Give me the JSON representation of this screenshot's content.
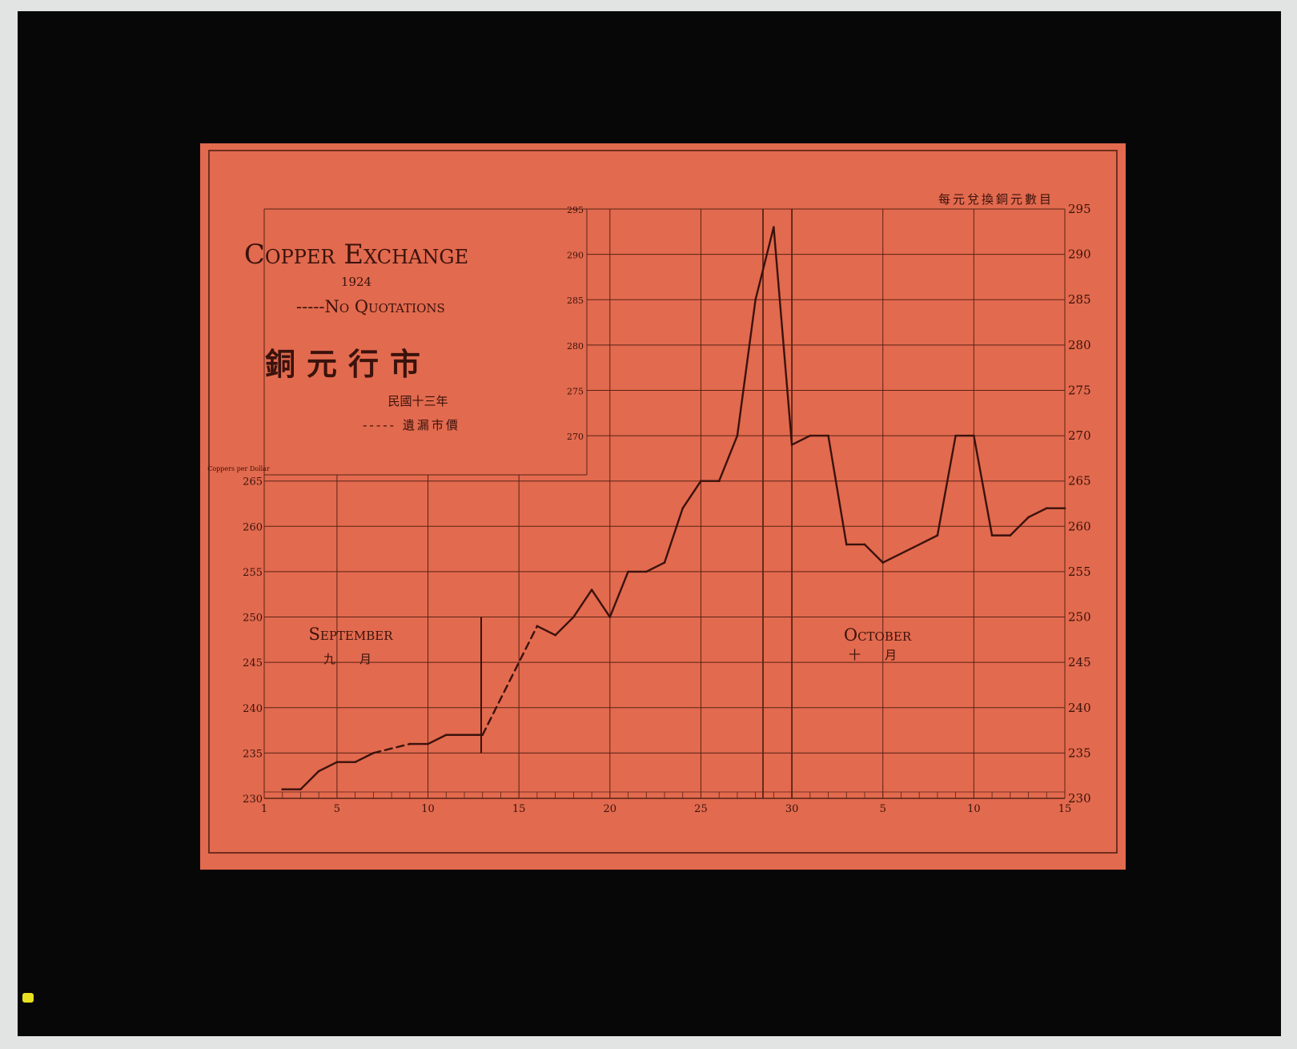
{
  "chart_data": {
    "type": "line",
    "title": "Copper Exchange",
    "subtitle": "1924",
    "title_zh": "銅元行市",
    "subtitle_zh": "民國十三年",
    "legend": {
      "dashed_label": "-----No Quotations",
      "dashed_label_zh": "----- 遺漏市價",
      "placement": "top-left"
    },
    "ylabel": "Coppers per Dollar",
    "ylabel_zh": "每元兌換銅元數目",
    "ylim": [
      230,
      295
    ],
    "y_ticks": [
      230,
      235,
      240,
      245,
      250,
      255,
      260,
      265,
      270,
      275,
      280,
      285,
      290,
      295
    ],
    "x_ticks": [
      {
        "day": 1,
        "label": "1"
      },
      {
        "day": 5,
        "label": "5"
      },
      {
        "day": 10,
        "label": "10"
      },
      {
        "day": 15,
        "label": "15"
      },
      {
        "day": 20,
        "label": "20"
      },
      {
        "day": 25,
        "label": "25"
      },
      {
        "day": 30,
        "label": "30"
      },
      {
        "day": 35,
        "label": "5"
      },
      {
        "day": 40,
        "label": "10"
      },
      {
        "day": 45,
        "label": "15"
      }
    ],
    "month_labels": [
      {
        "name": "September",
        "name_zh": "九　　月"
      },
      {
        "name": "October",
        "name_zh": "十　　月"
      }
    ],
    "grid": true,
    "series": [
      {
        "points": [
          {
            "x": "Sep 2",
            "y": 231,
            "day": 2
          },
          {
            "x": "Sep 3",
            "y": 231,
            "day": 3
          },
          {
            "x": "Sep 4",
            "y": 233,
            "day": 4
          },
          {
            "x": "Sep 5",
            "y": 234,
            "day": 5
          },
          {
            "x": "Sep 6",
            "y": 234,
            "day": 6
          },
          {
            "x": "Sep 7",
            "y": 235,
            "day": 7
          },
          {
            "x": "Sep 9",
            "y": 236,
            "day": 9,
            "dashed_from_previous": true
          },
          {
            "x": "Sep 10",
            "y": 236,
            "day": 10
          },
          {
            "x": "Sep 11",
            "y": 237,
            "day": 11
          },
          {
            "x": "Sep 13",
            "y": 237,
            "day": 13
          },
          {
            "x": "Sep 16",
            "y": 249,
            "day": 16,
            "dashed_from_previous": true
          },
          {
            "x": "Sep 17",
            "y": 248,
            "day": 17
          },
          {
            "x": "Sep 18",
            "y": 250,
            "day": 18
          },
          {
            "x": "Sep 19",
            "y": 253,
            "day": 19
          },
          {
            "x": "Sep 20",
            "y": 250,
            "day": 20
          },
          {
            "x": "Sep 21",
            "y": 255,
            "day": 21
          },
          {
            "x": "Sep 22",
            "y": 255,
            "day": 22
          },
          {
            "x": "Sep 23",
            "y": 256,
            "day": 23
          },
          {
            "x": "Sep 24",
            "y": 262,
            "day": 24
          },
          {
            "x": "Sep 25",
            "y": 265,
            "day": 25
          },
          {
            "x": "Sep 26",
            "y": 265,
            "day": 26
          },
          {
            "x": "Sep 27",
            "y": 270,
            "day": 27
          },
          {
            "x": "Sep 28",
            "y": 285,
            "day": 28
          },
          {
            "x": "Sep 29",
            "y": 293,
            "day": 29
          },
          {
            "x": "Sep 30",
            "y": 269,
            "day": 30
          },
          {
            "x": "Oct 1",
            "y": 270,
            "day": 31
          },
          {
            "x": "Oct 2",
            "y": 270,
            "day": 32
          },
          {
            "x": "Oct 3",
            "y": 258,
            "day": 33
          },
          {
            "x": "Oct 4",
            "y": 258,
            "day": 34
          },
          {
            "x": "Oct 5",
            "y": 256,
            "day": 35
          },
          {
            "x": "Oct 8",
            "y": 259,
            "day": 38
          },
          {
            "x": "Oct 9",
            "y": 270,
            "day": 39
          },
          {
            "x": "Oct 10",
            "y": 270,
            "day": 40
          },
          {
            "x": "Oct 11",
            "y": 259,
            "day": 41
          },
          {
            "x": "Oct 12",
            "y": 259,
            "day": 42
          },
          {
            "x": "Oct 13",
            "y": 261,
            "day": 43
          },
          {
            "x": "Oct 14",
            "y": 262,
            "day": 44
          },
          {
            "x": "Oct 15",
            "y": 262,
            "day": 45
          }
        ]
      }
    ]
  },
  "colors": {
    "card": "#e26a4e",
    "ink": "#3a120c",
    "slide": "#070707",
    "background": "#e2e4e3"
  }
}
